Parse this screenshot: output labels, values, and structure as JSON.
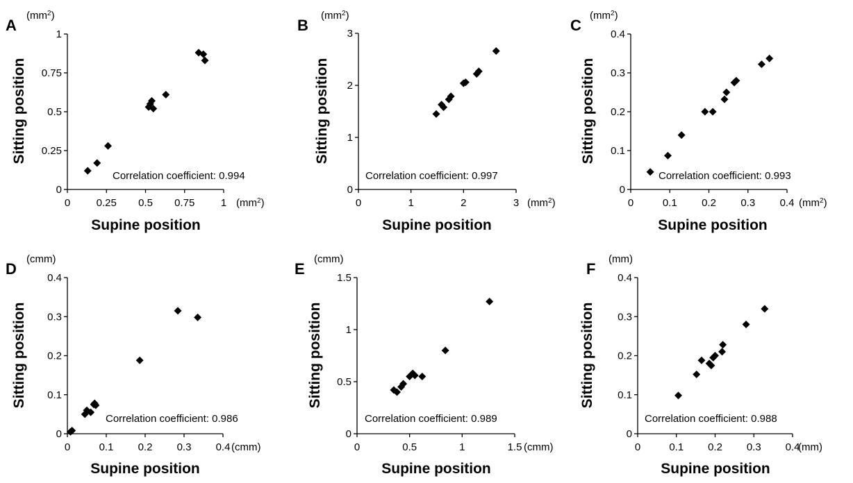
{
  "chart_data": [
    {
      "type": "scatter",
      "panel": "A",
      "x_unit": "(mm²)",
      "y_unit": "(mm²)",
      "xlabel": "Supine position",
      "ylabel": "Sitting position",
      "annotation": "Correlation coefficient: 0.994",
      "xlim": [
        0,
        1
      ],
      "ylim": [
        0,
        1
      ],
      "x_ticks": [
        "0",
        "0.25",
        "0.5",
        "0.75",
        "1"
      ],
      "y_ticks": [
        "0",
        "0.25",
        "0.5",
        "0.75",
        "1"
      ],
      "x_tick_values": [
        0,
        0.25,
        0.5,
        0.75,
        1
      ],
      "y_tick_values": [
        0,
        0.25,
        0.5,
        0.75,
        1
      ],
      "points": [
        [
          0.13,
          0.12
        ],
        [
          0.19,
          0.17
        ],
        [
          0.26,
          0.28
        ],
        [
          0.52,
          0.53
        ],
        [
          0.53,
          0.55
        ],
        [
          0.54,
          0.57
        ],
        [
          0.55,
          0.52
        ],
        [
          0.63,
          0.61
        ],
        [
          0.84,
          0.88
        ],
        [
          0.87,
          0.87
        ],
        [
          0.88,
          0.83
        ]
      ]
    },
    {
      "type": "scatter",
      "panel": "B",
      "x_unit": "(mm²)",
      "y_unit": "(mm²)",
      "xlabel": "Supine position",
      "ylabel": "Sitting position",
      "annotation": "Correlation coefficient: 0.997",
      "xlim": [
        0,
        3
      ],
      "ylim": [
        0,
        3
      ],
      "x_ticks": [
        "0",
        "1",
        "2",
        "3"
      ],
      "y_ticks": [
        "0",
        "1",
        "2",
        "3"
      ],
      "x_tick_values": [
        0,
        1,
        2,
        3
      ],
      "y_tick_values": [
        0,
        1,
        2,
        3
      ],
      "points": [
        [
          1.48,
          1.45
        ],
        [
          1.58,
          1.63
        ],
        [
          1.62,
          1.58
        ],
        [
          1.72,
          1.73
        ],
        [
          1.76,
          1.79
        ],
        [
          2.0,
          2.04
        ],
        [
          2.04,
          2.06
        ],
        [
          2.25,
          2.22
        ],
        [
          2.29,
          2.27
        ],
        [
          2.62,
          2.66
        ]
      ]
    },
    {
      "type": "scatter",
      "panel": "C",
      "x_unit": "(mm²)",
      "y_unit": "(mm²)",
      "xlabel": "Supine position",
      "ylabel": "Sitting position",
      "annotation": "Correlation coefficient: 0.993",
      "xlim": [
        0,
        0.4
      ],
      "ylim": [
        0,
        0.4
      ],
      "x_ticks": [
        "0",
        "0.1",
        "0.2",
        "0.3",
        "0.4"
      ],
      "y_ticks": [
        "0",
        "0.1",
        "0.2",
        "0.3",
        "0.4"
      ],
      "x_tick_values": [
        0,
        0.1,
        0.2,
        0.3,
        0.4
      ],
      "y_tick_values": [
        0,
        0.1,
        0.2,
        0.3,
        0.4
      ],
      "points": [
        [
          0.05,
          0.045
        ],
        [
          0.095,
          0.087
        ],
        [
          0.13,
          0.14
        ],
        [
          0.19,
          0.2
        ],
        [
          0.21,
          0.2
        ],
        [
          0.24,
          0.232
        ],
        [
          0.245,
          0.25
        ],
        [
          0.265,
          0.275
        ],
        [
          0.27,
          0.28
        ],
        [
          0.335,
          0.322
        ],
        [
          0.355,
          0.337
        ]
      ]
    },
    {
      "type": "scatter",
      "panel": "D",
      "x_unit": "(cmm)",
      "y_unit": "(cmm)",
      "xlabel": "Supine position",
      "ylabel": "Sitting position",
      "annotation": "Correlation coefficient: 0.986",
      "xlim": [
        0,
        0.4
      ],
      "ylim": [
        0,
        0.4
      ],
      "x_ticks": [
        "0",
        "0.1",
        "0.2",
        "0.3",
        "0.4"
      ],
      "y_ticks": [
        "0",
        "0.1",
        "0.2",
        "0.3",
        "0.4"
      ],
      "x_tick_values": [
        0,
        0.1,
        0.2,
        0.3,
        0.4
      ],
      "y_tick_values": [
        0,
        0.1,
        0.2,
        0.3,
        0.4
      ],
      "points": [
        [
          0.008,
          0.005
        ],
        [
          0.012,
          0.008
        ],
        [
          0.045,
          0.05
        ],
        [
          0.05,
          0.06
        ],
        [
          0.06,
          0.055
        ],
        [
          0.068,
          0.075
        ],
        [
          0.07,
          0.078
        ],
        [
          0.073,
          0.073
        ],
        [
          0.186,
          0.188
        ],
        [
          0.284,
          0.315
        ],
        [
          0.335,
          0.298
        ]
      ]
    },
    {
      "type": "scatter",
      "panel": "E",
      "x_unit": "(cmm)",
      "y_unit": "(cmm)",
      "xlabel": "Supine position",
      "ylabel": "Sitting position",
      "annotation": "Correlation coefficient: 0.989",
      "xlim": [
        0,
        1.5
      ],
      "ylim": [
        0,
        1.5
      ],
      "x_ticks": [
        "0",
        "0.5",
        "1",
        "1.5"
      ],
      "y_ticks": [
        "0",
        "0.5",
        "1",
        "1.5"
      ],
      "x_tick_values": [
        0,
        0.5,
        1,
        1.5
      ],
      "y_tick_values": [
        0,
        0.5,
        1,
        1.5
      ],
      "points": [
        [
          0.35,
          0.42
        ],
        [
          0.38,
          0.4
        ],
        [
          0.42,
          0.45
        ],
        [
          0.44,
          0.48
        ],
        [
          0.5,
          0.55
        ],
        [
          0.53,
          0.58
        ],
        [
          0.55,
          0.56
        ],
        [
          0.62,
          0.55
        ],
        [
          0.84,
          0.8
        ],
        [
          1.26,
          1.27
        ]
      ]
    },
    {
      "type": "scatter",
      "panel": "F",
      "x_unit": "(mm)",
      "y_unit": "(mm)",
      "xlabel": "Supine position",
      "ylabel": "Sitting position",
      "annotation": "Correlation coefficient: 0.988",
      "xlim": [
        0,
        0.4
      ],
      "ylim": [
        0,
        0.4
      ],
      "x_ticks": [
        "0",
        "0.1",
        "0.2",
        "0.3",
        "0.4"
      ],
      "y_ticks": [
        "0",
        "0.1",
        "0.2",
        "0.3",
        "0.4"
      ],
      "x_tick_values": [
        0,
        0.1,
        0.2,
        0.3,
        0.4
      ],
      "y_tick_values": [
        0,
        0.1,
        0.2,
        0.3,
        0.4
      ],
      "points": [
        [
          0.105,
          0.098
        ],
        [
          0.152,
          0.152
        ],
        [
          0.165,
          0.188
        ],
        [
          0.185,
          0.18
        ],
        [
          0.19,
          0.175
        ],
        [
          0.195,
          0.195
        ],
        [
          0.2,
          0.2
        ],
        [
          0.218,
          0.21
        ],
        [
          0.22,
          0.228
        ],
        [
          0.28,
          0.28
        ],
        [
          0.328,
          0.32
        ]
      ]
    }
  ]
}
